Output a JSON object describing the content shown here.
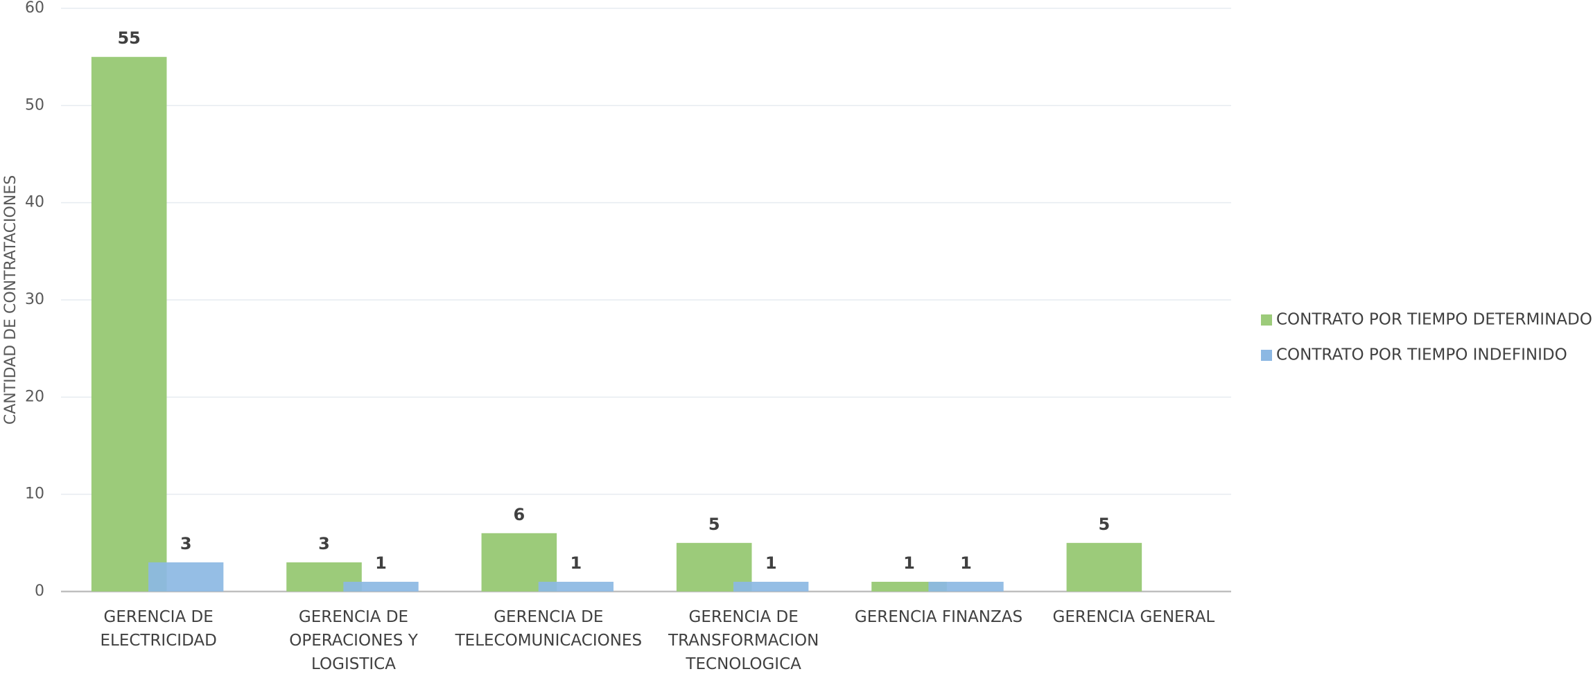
{
  "chart_data": {
    "type": "bar",
    "y_label": "CANTIDAD DE CONTRATACIONES",
    "categories": [
      "GERENCIA DE ELECTRICIDAD",
      "GERENCIA DE OPERACIONES Y LOGISTICA",
      "GERENCIA DE TELECOMUNICACIONES",
      "GERENCIA DE TRANSFORMACION TECNOLOGICA",
      "GERENCIA FINANZAS",
      "GERENCIA GENERAL"
    ],
    "series": [
      {
        "name": "CONTRATO POR TIEMPO DETERMINADO",
        "color": "#9ccb7a",
        "values": [
          55,
          3,
          6,
          5,
          1,
          5
        ]
      },
      {
        "name": "CONTRATO POR TIEMPO INDEFINIDO",
        "color": "#8cb8e3",
        "values": [
          3,
          1,
          1,
          1,
          1,
          null
        ]
      }
    ],
    "ylim": [
      0,
      60
    ],
    "yticks": [
      0,
      10,
      20,
      30,
      40,
      50,
      60
    ],
    "grid": true,
    "legend": "right"
  }
}
